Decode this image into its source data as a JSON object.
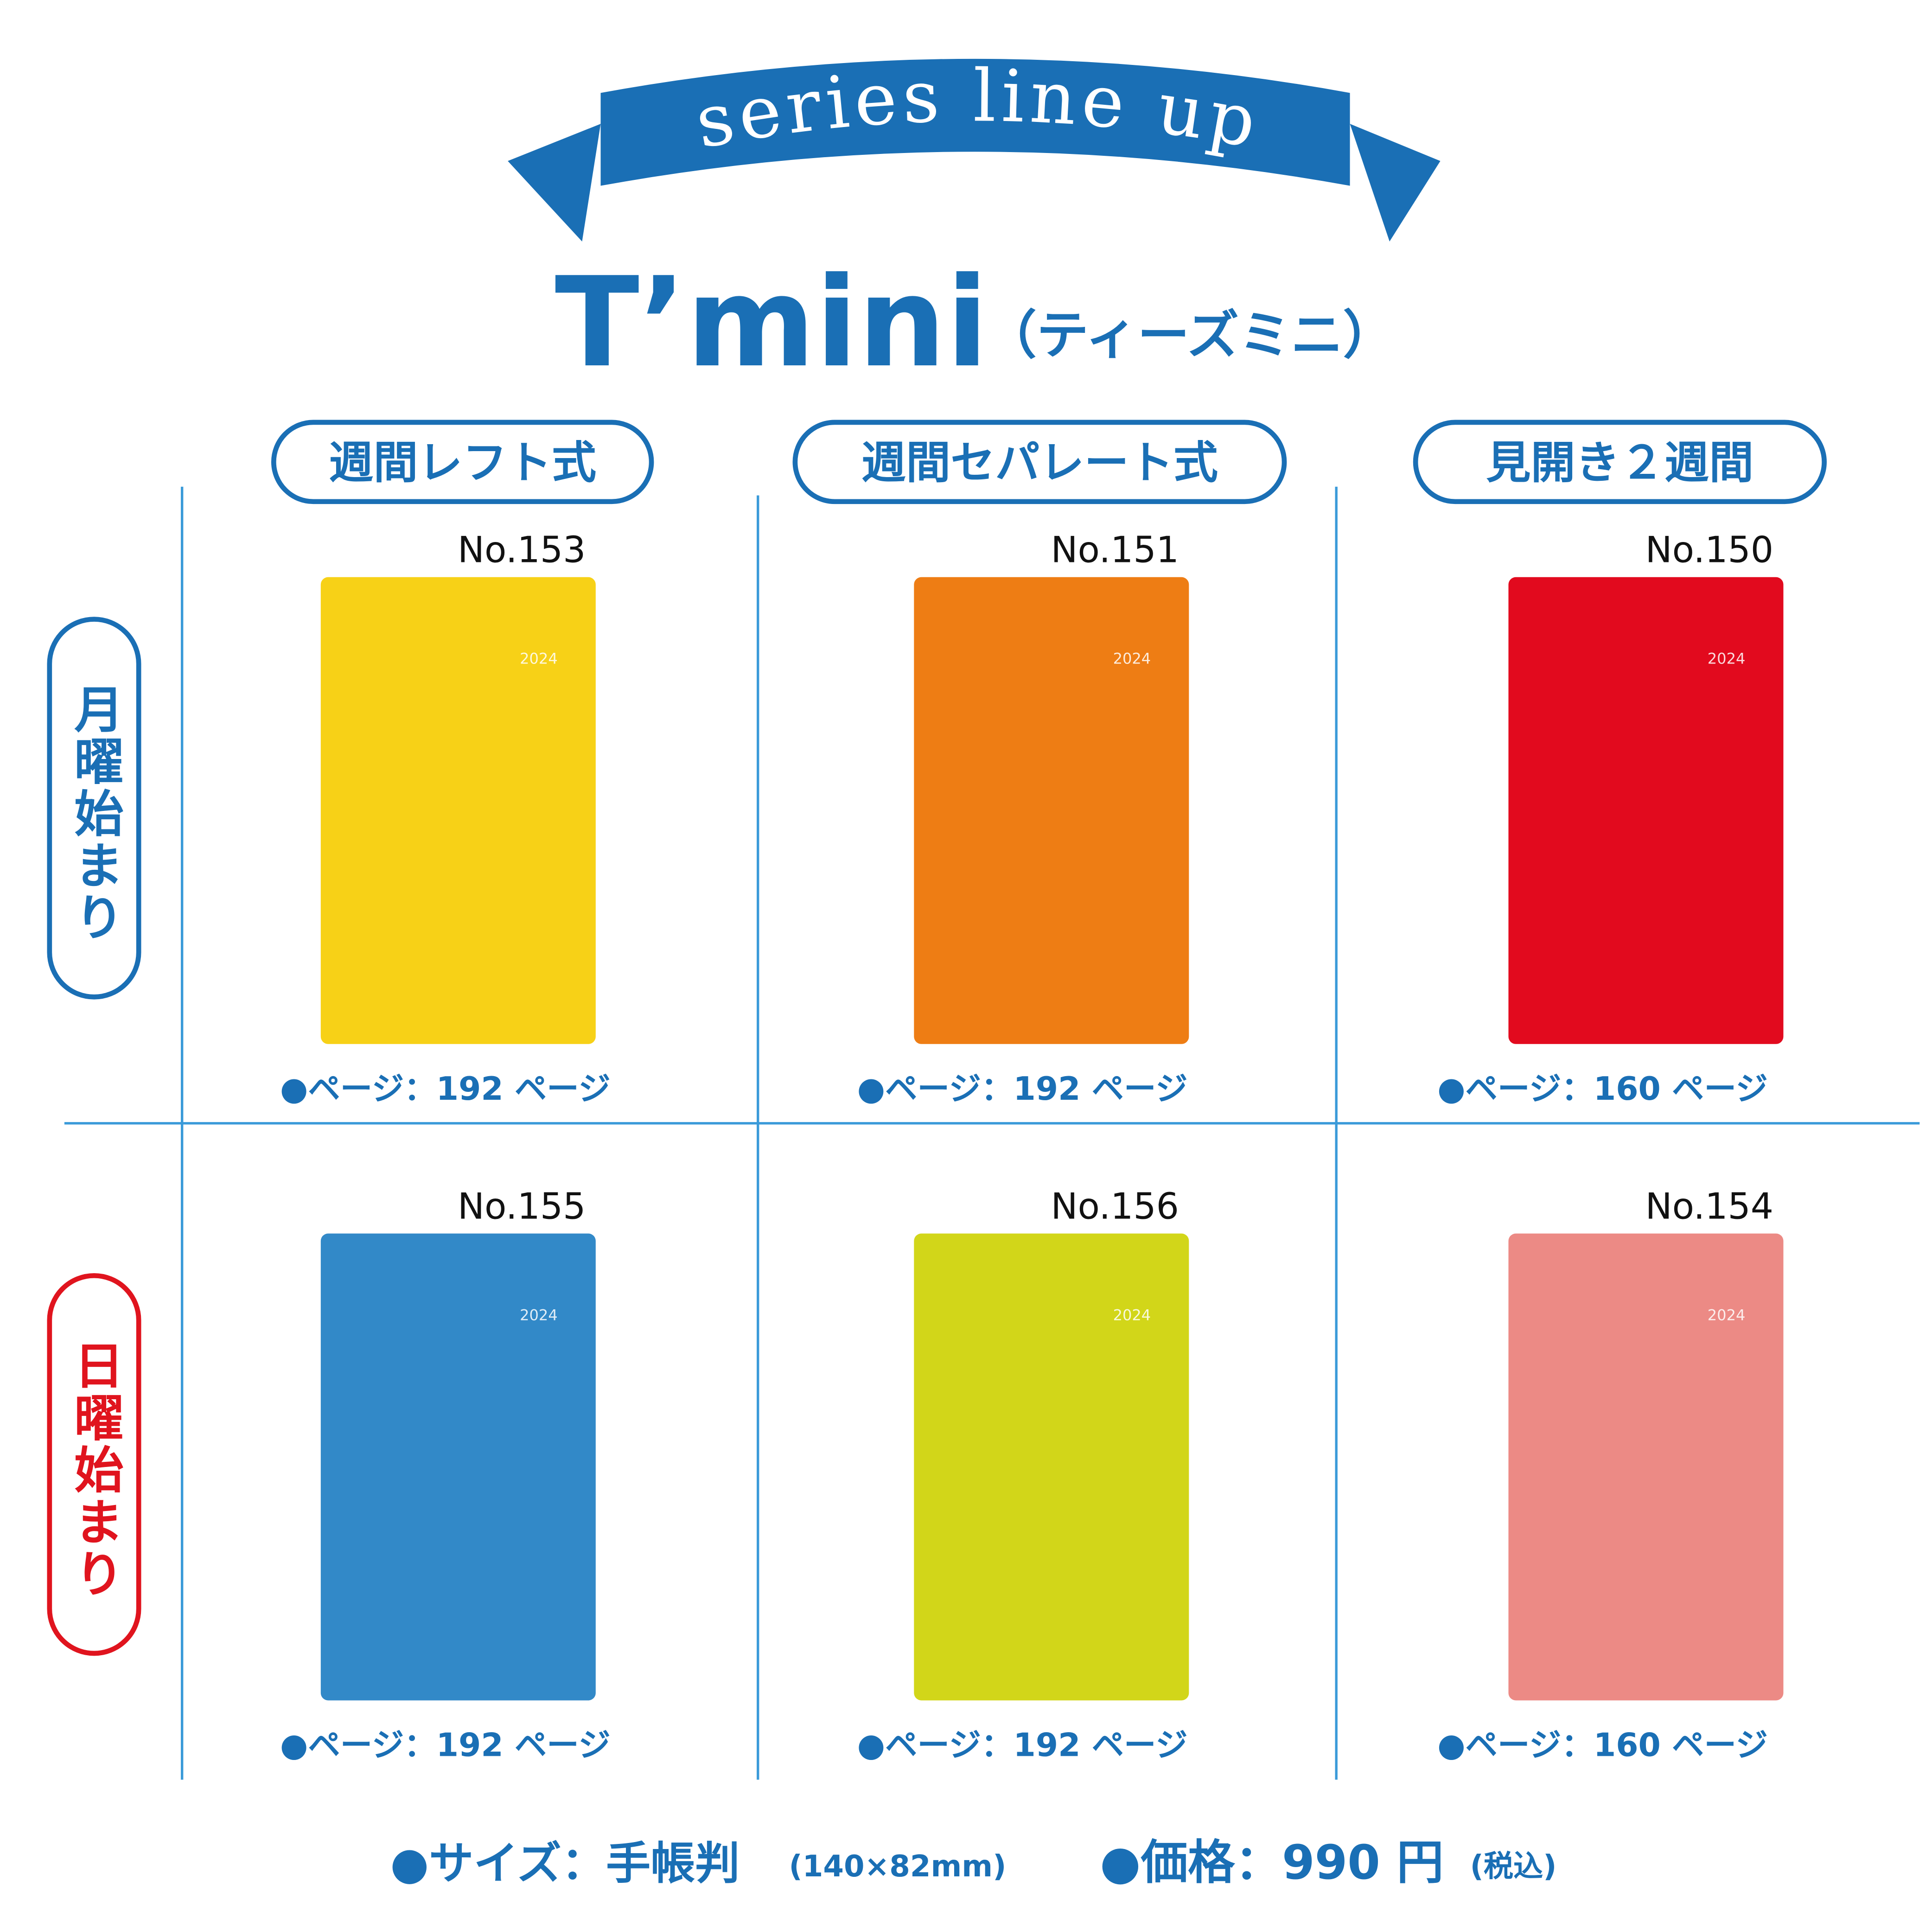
{
  "header": {
    "ribbon": "series line up",
    "title": "T’mini",
    "subtitle": "（ティーズミニ）"
  },
  "columns": [
    "週間レフト式",
    "週間セパレート式",
    "見開き２週間"
  ],
  "rows": [
    {
      "label": "月曜始まり",
      "color": "#1a6fb5"
    },
    {
      "label": "日曜始まり",
      "color": "#e0141e"
    }
  ],
  "products": [
    [
      {
        "number": "No.153",
        "year": "2024",
        "color": "#f7d117",
        "pages": "●ページ：192 ページ"
      },
      {
        "number": "No.151",
        "year": "2024",
        "color": "#ee7d14",
        "pages": "●ページ：192 ページ"
      },
      {
        "number": "No.150",
        "year": "2024",
        "color": "#e20a1e",
        "pages": "●ページ：160 ページ"
      }
    ],
    [
      {
        "number": "No.155",
        "year": "2024",
        "color": "#3289c8",
        "pages": "●ページ：192 ページ"
      },
      {
        "number": "No.156",
        "year": "2024",
        "color": "#d2d619",
        "pages": "●ページ：192 ページ"
      },
      {
        "number": "No.154",
        "year": "2024",
        "color": "#ec8a85",
        "pages": "●ページ：160 ページ"
      }
    ]
  ],
  "footer": {
    "size": "●サイズ：手帳判",
    "size_detail": "(140×82mm)",
    "price": "●価格：990 円",
    "price_note": "(税込)"
  }
}
